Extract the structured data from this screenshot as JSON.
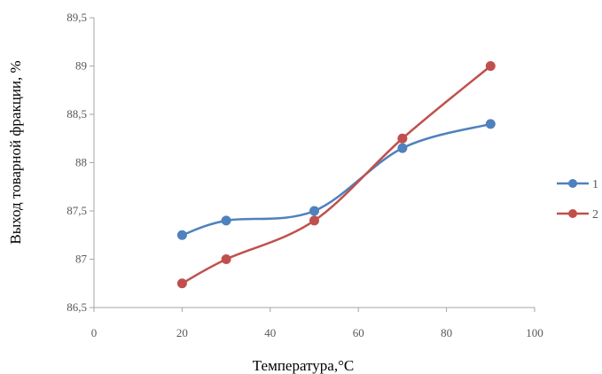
{
  "chart_data": {
    "type": "line",
    "title": "",
    "xlabel": "Температура,°С",
    "ylabel": "Выход товарной фракции, %",
    "xlim": [
      0,
      100
    ],
    "ylim": [
      86.5,
      89.5
    ],
    "xticks": [
      0,
      20,
      40,
      60,
      80,
      100
    ],
    "xtick_labels": [
      "0",
      "20",
      "40",
      "60",
      "80",
      "100"
    ],
    "yticks": [
      86.5,
      87,
      87.5,
      88,
      88.5,
      89,
      89.5
    ],
    "ytick_labels": [
      "86,5",
      "87",
      "87,5",
      "88",
      "88,5",
      "89",
      "89,5"
    ],
    "grid": false,
    "smooth": true,
    "legend_position": "right",
    "series": [
      {
        "name": "1",
        "color": "#4F81BD",
        "x": [
          20,
          30,
          50,
          70,
          90
        ],
        "y": [
          87.25,
          87.4,
          87.5,
          88.15,
          88.4
        ]
      },
      {
        "name": "2",
        "color": "#C0504D",
        "x": [
          20,
          30,
          50,
          70,
          90
        ],
        "y": [
          86.75,
          87.0,
          87.4,
          88.25,
          89.0
        ]
      }
    ]
  }
}
